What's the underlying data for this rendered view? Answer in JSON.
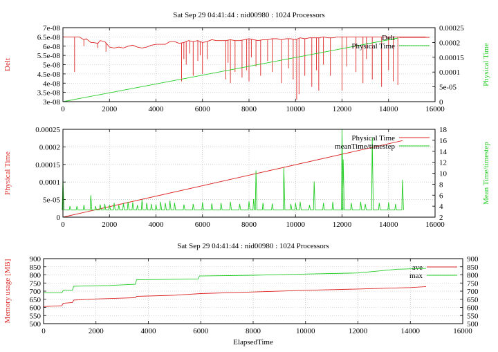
{
  "chart_data": [
    {
      "type": "line",
      "title": "Sat Sep 29 04:41:44 : nid00980 : 1024 Processors",
      "xlabel": "",
      "ylabel": "Delt",
      "y2label": "Physical Time",
      "xlim": [
        0,
        16000
      ],
      "ylim": [
        3e-08,
        7e-08
      ],
      "y2lim": [
        0,
        0.00025
      ],
      "grid": true,
      "legend_position": "top-right",
      "x_ticks": [
        "0",
        "2000",
        "4000",
        "6000",
        "8000",
        "10000",
        "12000",
        "14000",
        "16000"
      ],
      "y_ticks": [
        "3e-08",
        "3.5e-08",
        "4e-08",
        "4.5e-08",
        "5e-08",
        "5.5e-08",
        "6e-08",
        "6.5e-08",
        "7e-08"
      ],
      "y2_ticks": [
        "0",
        "5e-05",
        "0.0001",
        "0.00015",
        "0.0002",
        "0.00025"
      ],
      "series": [
        {
          "name": "Delt",
          "axis": "y",
          "color": "#dd2222",
          "x": [
            0,
            700,
            900,
            1000,
            1100,
            1200,
            1300,
            1500,
            1600,
            1800,
            2000,
            2200,
            2400,
            2600,
            2800,
            3000,
            3200,
            3400,
            3600,
            3800,
            4000,
            4200,
            4400,
            4600,
            4800,
            5000,
            5200,
            5400,
            5600,
            5800,
            6000,
            6200,
            6400,
            6600,
            6800,
            7000,
            7200,
            7400,
            7600,
            7800,
            8000,
            8200,
            8400,
            8600,
            8800,
            9000,
            9200,
            9400,
            9600,
            9800,
            10000,
            10200,
            10400,
            10600,
            10800,
            11000,
            11200,
            11400,
            11600,
            11800,
            12000,
            12200,
            12400,
            12600,
            12800,
            13000,
            13200,
            13400,
            13600,
            13800,
            14000,
            14200,
            14400,
            14600,
            15600
          ],
          "y": [
            6.5e-08,
            6.5e-08,
            6.35e-08,
            6.4e-08,
            6.3e-08,
            6.2e-08,
            6.2e-08,
            6.15e-08,
            6.3e-08,
            6.25e-08,
            5.95e-08,
            5.9e-08,
            5.95e-08,
            5.9e-08,
            6e-08,
            6.05e-08,
            5.95e-08,
            5.9e-08,
            5.95e-08,
            6.05e-08,
            6.1e-08,
            6.1e-08,
            6.1e-08,
            6.25e-08,
            6.25e-08,
            6.15e-08,
            6.2e-08,
            6.3e-08,
            6.25e-08,
            6.3e-08,
            6.2e-08,
            6.25e-08,
            6.35e-08,
            6.3e-08,
            6.3e-08,
            6.3e-08,
            6.35e-08,
            6.3e-08,
            6.3e-08,
            6.35e-08,
            6.4e-08,
            6.35e-08,
            6.3e-08,
            6.35e-08,
            6.35e-08,
            6.4e-08,
            6.4e-08,
            6.35e-08,
            6.4e-08,
            6.4e-08,
            6.35e-08,
            6.45e-08,
            6.4e-08,
            6.45e-08,
            6.45e-08,
            6.45e-08,
            6.5e-08,
            6.45e-08,
            6.45e-08,
            6.5e-08,
            6.5e-08,
            6.5e-08,
            6.5e-08,
            6.5e-08,
            6.5e-08,
            6.5e-08,
            6.5e-08,
            6.5e-08,
            6.5e-08,
            6.5e-08,
            6.5e-08,
            6.5e-08,
            6.5e-08,
            6.5e-08,
            6.5e-08
          ],
          "dips_x": [
            500,
            900,
            1500,
            1850,
            5100,
            5200,
            5300,
            5450,
            5600,
            5800,
            5900,
            6000,
            6200,
            7000,
            7100,
            7200,
            7400,
            7700,
            7900,
            8000,
            8100,
            8300,
            8500,
            8800,
            9000,
            9400,
            9700,
            9900,
            10050,
            10150,
            10400,
            10700,
            10900,
            11000,
            11200,
            11500,
            12000,
            12200,
            12600,
            12900,
            13050,
            13300,
            13700,
            14000,
            14200,
            14400
          ],
          "dips_y": [
            4.6e-08,
            6e-08,
            5.9e-08,
            5.7e-08,
            4.1e-08,
            5.3e-08,
            5e-08,
            5.6e-08,
            4.4e-08,
            5.2e-08,
            5.5e-08,
            4.5e-08,
            5.3e-08,
            4.2e-08,
            5.1e-08,
            4e-08,
            4.6e-08,
            4.3e-08,
            4.7e-08,
            4.1e-08,
            5.4e-08,
            4.9e-08,
            4.4e-08,
            5.2e-08,
            4.6e-08,
            4e-08,
            4.8e-08,
            4.2e-08,
            3.1e-08,
            3.4e-08,
            4.4e-08,
            3.8e-08,
            4.7e-08,
            3.6e-08,
            5e-08,
            4.4e-08,
            3.6e-08,
            4.9e-08,
            4.6e-08,
            4e-08,
            5.3e-08,
            4.2e-08,
            3.8e-08,
            4.7e-08,
            4.1e-08,
            3.9e-08
          ]
        },
        {
          "name": "Physical Time",
          "axis": "y2",
          "color": "#22cc22",
          "x": [
            0,
            14400
          ],
          "y": [
            0,
            0.000215
          ]
        }
      ]
    },
    {
      "type": "line",
      "title": "",
      "xlabel": "",
      "ylabel": "Physical Time",
      "y2label": "Mean Time/timestep",
      "xlim": [
        0,
        16000
      ],
      "ylim": [
        0,
        0.00025
      ],
      "y2lim": [
        2,
        18
      ],
      "grid": true,
      "legend_position": "top-right",
      "x_ticks": [
        "0",
        "2000",
        "4000",
        "6000",
        "8000",
        "10000",
        "12000",
        "14000",
        "16000"
      ],
      "y_ticks": [
        "0",
        "5e-05",
        "0.0001",
        "0.00015",
        "0.0002",
        "0.00025"
      ],
      "y2_ticks": [
        "2",
        "4",
        "6",
        "8",
        "10",
        "12",
        "14",
        "16",
        "18"
      ],
      "series": [
        {
          "name": "Physical Time",
          "axis": "y",
          "color": "#dd2222",
          "x": [
            0,
            14600
          ],
          "y": [
            0,
            0.000218
          ]
        },
        {
          "name": "meanTime/timestep",
          "axis": "y2",
          "color": "#22cc22",
          "baseline": 3.3,
          "spikes_x": [
            0,
            300,
            600,
            900,
            1200,
            1400,
            1600,
            1800,
            2000,
            2200,
            2400,
            2600,
            2800,
            3000,
            3200,
            3400,
            3600,
            3800,
            4000,
            4200,
            4400,
            4600,
            4800,
            5200,
            5600,
            6000,
            6400,
            6800,
            7200,
            7600,
            8000,
            8200,
            8300,
            8600,
            9000,
            9500,
            9800,
            10000,
            10200,
            10600,
            10800,
            11200,
            11600,
            12000,
            12050,
            12400,
            12800,
            13000,
            13300,
            13600,
            14000,
            14300,
            14600
          ],
          "spikes_y": [
            9,
            4,
            4,
            4.2,
            6,
            4,
            4.3,
            4.4,
            4.2,
            4.6,
            4.2,
            4.5,
            4.8,
            4.7,
            4.2,
            5.2,
            4.6,
            4.4,
            4.3,
            4.8,
            4.6,
            5.0,
            4.6,
            4.3,
            4.4,
            4.7,
            4.5,
            4.6,
            4.8,
            4.4,
            4.9,
            5.3,
            10.5,
            4.6,
            4.5,
            11,
            4.4,
            4.6,
            4.8,
            4.2,
            8.5,
            4.6,
            4.8,
            18,
            12.5,
            4.6,
            4.8,
            4.4,
            16.5,
            4.6,
            4.7,
            4.4,
            8.8
          ]
        }
      ]
    },
    {
      "type": "line",
      "title": "Sat Sep 29 04:41:44 : nid00980 : 1024 Processors",
      "xlabel": "ElapsedTime",
      "ylabel": "Memory usage [MB]",
      "y2label": "",
      "xlim": [
        0,
        16000
      ],
      "ylim": [
        500,
        900
      ],
      "y2lim": [
        500,
        900
      ],
      "grid": true,
      "legend_position": "top-right",
      "x_ticks": [
        "0",
        "2000",
        "4000",
        "6000",
        "8000",
        "10000",
        "12000",
        "14000",
        "16000"
      ],
      "y_ticks": [
        "500",
        "550",
        "600",
        "650",
        "700",
        "750",
        "800",
        "850",
        "900"
      ],
      "y2_ticks": [
        "500",
        "550",
        "600",
        "650",
        "700",
        "750",
        "800",
        "850",
        "900"
      ],
      "series": [
        {
          "name": "ave",
          "axis": "y",
          "color": "#dd2222",
          "x": [
            0,
            700,
            750,
            1100,
            1150,
            2000,
            3500,
            3550,
            5000,
            6000,
            8000,
            10000,
            12000,
            14000,
            14600
          ],
          "y": [
            605,
            610,
            625,
            630,
            645,
            652,
            660,
            668,
            675,
            685,
            695,
            705,
            713,
            722,
            728
          ]
        },
        {
          "name": "max",
          "axis": "y",
          "color": "#22cc22",
          "x": [
            0,
            700,
            750,
            1100,
            1150,
            2500,
            3500,
            3550,
            5900,
            5950,
            8000,
            10000,
            12000,
            13500,
            14600
          ],
          "y": [
            690,
            690,
            705,
            705,
            730,
            735,
            742,
            770,
            775,
            793,
            798,
            805,
            812,
            835,
            840
          ]
        }
      ]
    }
  ]
}
